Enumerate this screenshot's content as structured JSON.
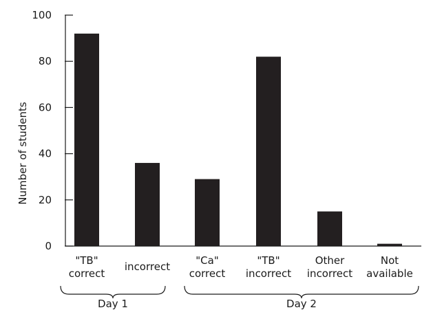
{
  "chart_data": {
    "type": "bar",
    "ylabel": "Number of students",
    "xlabel": "",
    "ylim": [
      0,
      100
    ],
    "yticks": [
      0,
      20,
      40,
      60,
      80,
      100
    ],
    "grid": false,
    "bar_color": "#231f20",
    "categories": [
      {
        "lines": [
          "\"TB\"",
          "correct"
        ],
        "value": 92
      },
      {
        "lines": [
          "incorrect"
        ],
        "value": 36
      },
      {
        "lines": [
          "\"Ca\"",
          "correct"
        ],
        "value": 29
      },
      {
        "lines": [
          "\"TB\"",
          "incorrect"
        ],
        "value": 82
      },
      {
        "lines": [
          "Other",
          "incorrect"
        ],
        "value": 15
      },
      {
        "lines": [
          "Not",
          "available"
        ],
        "value": 1
      }
    ],
    "groups": [
      {
        "label": "Day 1",
        "first": 0,
        "last": 1
      },
      {
        "label": "Day 2",
        "first": 2,
        "last": 5
      }
    ]
  }
}
